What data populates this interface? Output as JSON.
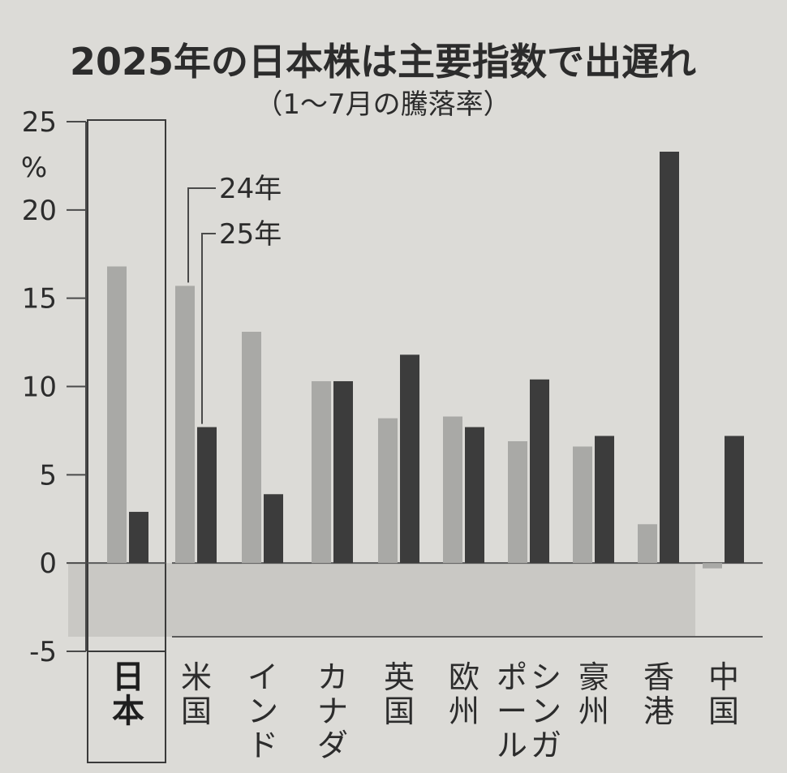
{
  "chart_data": {
    "type": "bar",
    "title": "2025年の日本株は主要指数で出遅れ",
    "subtitle": "（1～7月の騰落率）",
    "ylabel": "%",
    "ylim": [
      -5,
      25
    ],
    "yticks": [
      25,
      20,
      15,
      10,
      5,
      0,
      -5
    ],
    "categories": [
      "日本",
      "米国",
      "インド",
      "カナダ",
      "英国",
      "欧州",
      "シンガポール",
      "豪州",
      "香港",
      "中国"
    ],
    "highlight_category": "日本",
    "series": [
      {
        "name": "24年",
        "color": "#a9a9a6",
        "values": [
          16.8,
          15.7,
          13.1,
          10.3,
          8.2,
          8.3,
          6.9,
          6.6,
          2.2,
          -0.3
        ]
      },
      {
        "name": "25年",
        "color": "#3c3c3c",
        "values": [
          2.9,
          7.7,
          3.9,
          10.3,
          11.8,
          7.7,
          10.4,
          7.2,
          23.3,
          7.2
        ]
      }
    ],
    "negative_band_color": "#c9c8c4"
  }
}
